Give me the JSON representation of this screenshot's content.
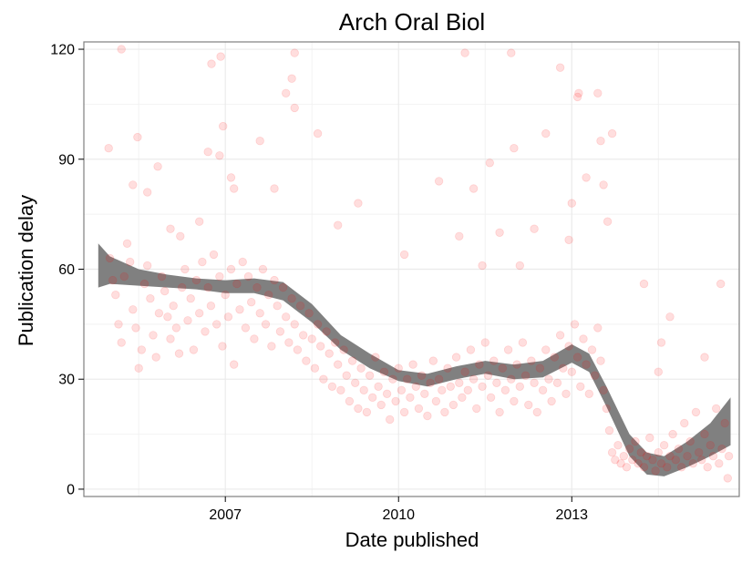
{
  "chart_data": {
    "type": "scatter",
    "title": "Arch Oral Biol",
    "xlabel": "Date published",
    "ylabel": "Publication delay",
    "xlim": [
      2004.55,
      2015.9
    ],
    "ylim": [
      -2,
      122
    ],
    "x_ticks": [
      2007,
      2010,
      2013
    ],
    "x_tick_labels": [
      "2007",
      "2010",
      "2013"
    ],
    "y_ticks": [
      0,
      30,
      60,
      90,
      120
    ],
    "y_tick_labels": [
      "0",
      "30",
      "60",
      "90",
      "120"
    ],
    "grid": true,
    "legend": "none",
    "point_color": "#ff0000",
    "point_opacity": 0.13,
    "smooth_color": "#808080",
    "points_note_free": true,
    "points": [
      [
        2004.98,
        93
      ],
      [
        2005.2,
        120
      ],
      [
        2005.4,
        83
      ],
      [
        2005.48,
        96
      ],
      [
        2005.65,
        81
      ],
      [
        2005.83,
        88
      ],
      [
        2006.05,
        71
      ],
      [
        2006.22,
        69
      ],
      [
        2006.55,
        73
      ],
      [
        2006.7,
        92
      ],
      [
        2006.76,
        116
      ],
      [
        2006.9,
        91
      ],
      [
        2006.92,
        118
      ],
      [
        2006.96,
        99
      ],
      [
        2007.1,
        85
      ],
      [
        2007.15,
        82
      ],
      [
        2007.6,
        95
      ],
      [
        2007.85,
        82
      ],
      [
        2008.05,
        108
      ],
      [
        2008.15,
        112
      ],
      [
        2008.2,
        104
      ],
      [
        2008.2,
        119
      ],
      [
        2008.6,
        97
      ],
      [
        2008.95,
        72
      ],
      [
        2009.3,
        78
      ],
      [
        2010.1,
        64
      ],
      [
        2010.7,
        84
      ],
      [
        2011.05,
        69
      ],
      [
        2011.15,
        119
      ],
      [
        2011.3,
        82
      ],
      [
        2011.45,
        61
      ],
      [
        2011.58,
        89
      ],
      [
        2011.75,
        70
      ],
      [
        2011.95,
        119
      ],
      [
        2012.0,
        93
      ],
      [
        2012.1,
        61
      ],
      [
        2012.35,
        71
      ],
      [
        2012.55,
        97
      ],
      [
        2012.8,
        115
      ],
      [
        2012.95,
        68
      ],
      [
        2013.0,
        78
      ],
      [
        2013.1,
        107
      ],
      [
        2013.12,
        108
      ],
      [
        2013.25,
        85
      ],
      [
        2013.45,
        108
      ],
      [
        2013.5,
        95
      ],
      [
        2013.55,
        83
      ],
      [
        2013.7,
        97
      ],
      [
        2013.62,
        73
      ],
      [
        2014.25,
        56
      ],
      [
        2014.5,
        32
      ],
      [
        2014.55,
        40
      ],
      [
        2014.7,
        47
      ],
      [
        2015.3,
        36
      ],
      [
        2015.58,
        56
      ],
      [
        2005.0,
        63
      ],
      [
        2005.05,
        57
      ],
      [
        2005.1,
        53
      ],
      [
        2005.15,
        45
      ],
      [
        2005.2,
        40
      ],
      [
        2005.25,
        58
      ],
      [
        2005.3,
        67
      ],
      [
        2005.35,
        62
      ],
      [
        2005.4,
        49
      ],
      [
        2005.45,
        44
      ],
      [
        2005.5,
        33
      ],
      [
        2005.55,
        38
      ],
      [
        2005.6,
        56
      ],
      [
        2005.65,
        61
      ],
      [
        2005.7,
        52
      ],
      [
        2005.75,
        42
      ],
      [
        2005.8,
        36
      ],
      [
        2005.85,
        48
      ],
      [
        2005.9,
        58
      ],
      [
        2005.95,
        54
      ],
      [
        2006.0,
        47
      ],
      [
        2006.05,
        41
      ],
      [
        2006.1,
        50
      ],
      [
        2006.15,
        44
      ],
      [
        2006.2,
        37
      ],
      [
        2006.25,
        55
      ],
      [
        2006.3,
        60
      ],
      [
        2006.35,
        46
      ],
      [
        2006.4,
        52
      ],
      [
        2006.45,
        38
      ],
      [
        2006.5,
        57
      ],
      [
        2006.55,
        48
      ],
      [
        2006.6,
        62
      ],
      [
        2006.65,
        43
      ],
      [
        2006.7,
        55
      ],
      [
        2006.75,
        50
      ],
      [
        2006.8,
        64
      ],
      [
        2006.85,
        45
      ],
      [
        2006.9,
        58
      ],
      [
        2006.95,
        39
      ],
      [
        2007.0,
        53
      ],
      [
        2007.05,
        47
      ],
      [
        2007.1,
        60
      ],
      [
        2007.15,
        34
      ],
      [
        2007.2,
        56
      ],
      [
        2007.25,
        49
      ],
      [
        2007.3,
        62
      ],
      [
        2007.35,
        44
      ],
      [
        2007.4,
        58
      ],
      [
        2007.45,
        51
      ],
      [
        2007.5,
        41
      ],
      [
        2007.55,
        55
      ],
      [
        2007.6,
        48
      ],
      [
        2007.65,
        60
      ],
      [
        2007.7,
        45
      ],
      [
        2007.75,
        53
      ],
      [
        2007.8,
        39
      ],
      [
        2007.85,
        57
      ],
      [
        2007.9,
        50
      ],
      [
        2007.95,
        43
      ],
      [
        2008.0,
        55
      ],
      [
        2008.05,
        47
      ],
      [
        2008.1,
        40
      ],
      [
        2008.15,
        52
      ],
      [
        2008.2,
        45
      ],
      [
        2008.25,
        38
      ],
      [
        2008.3,
        50
      ],
      [
        2008.35,
        42
      ],
      [
        2008.4,
        35
      ],
      [
        2008.45,
        48
      ],
      [
        2008.5,
        41
      ],
      [
        2008.55,
        33
      ],
      [
        2008.6,
        45
      ],
      [
        2008.65,
        39
      ],
      [
        2008.7,
        30
      ],
      [
        2008.75,
        43
      ],
      [
        2008.8,
        37
      ],
      [
        2008.85,
        28
      ],
      [
        2008.9,
        40
      ],
      [
        2008.95,
        34
      ],
      [
        2009.0,
        27
      ],
      [
        2009.05,
        38
      ],
      [
        2009.1,
        31
      ],
      [
        2009.15,
        24
      ],
      [
        2009.2,
        35
      ],
      [
        2009.25,
        29
      ],
      [
        2009.3,
        22
      ],
      [
        2009.35,
        33
      ],
      [
        2009.4,
        27
      ],
      [
        2009.45,
        21
      ],
      [
        2009.5,
        31
      ],
      [
        2009.55,
        25
      ],
      [
        2009.6,
        36
      ],
      [
        2009.65,
        28
      ],
      [
        2009.7,
        23
      ],
      [
        2009.75,
        32
      ],
      [
        2009.8,
        26
      ],
      [
        2009.85,
        19
      ],
      [
        2009.9,
        30
      ],
      [
        2009.95,
        24
      ],
      [
        2010.0,
        33
      ],
      [
        2010.05,
        27
      ],
      [
        2010.1,
        21
      ],
      [
        2010.15,
        30
      ],
      [
        2010.2,
        25
      ],
      [
        2010.25,
        34
      ],
      [
        2010.3,
        28
      ],
      [
        2010.35,
        22
      ],
      [
        2010.4,
        31
      ],
      [
        2010.45,
        26
      ],
      [
        2010.5,
        20
      ],
      [
        2010.55,
        29
      ],
      [
        2010.6,
        35
      ],
      [
        2010.65,
        24
      ],
      [
        2010.7,
        30
      ],
      [
        2010.75,
        27
      ],
      [
        2010.8,
        21
      ],
      [
        2010.85,
        33
      ],
      [
        2010.9,
        28
      ],
      [
        2010.95,
        23
      ],
      [
        2011.0,
        36
      ],
      [
        2011.05,
        29
      ],
      [
        2011.1,
        25
      ],
      [
        2011.15,
        32
      ],
      [
        2011.2,
        27
      ],
      [
        2011.25,
        38
      ],
      [
        2011.3,
        30
      ],
      [
        2011.35,
        22
      ],
      [
        2011.4,
        34
      ],
      [
        2011.45,
        28
      ],
      [
        2011.5,
        40
      ],
      [
        2011.55,
        31
      ],
      [
        2011.6,
        25
      ],
      [
        2011.65,
        35
      ],
      [
        2011.7,
        29
      ],
      [
        2011.75,
        21
      ],
      [
        2011.8,
        33
      ],
      [
        2011.85,
        27
      ],
      [
        2011.9,
        38
      ],
      [
        2011.95,
        30
      ],
      [
        2012.0,
        24
      ],
      [
        2012.05,
        34
      ],
      [
        2012.1,
        28
      ],
      [
        2012.15,
        40
      ],
      [
        2012.2,
        31
      ],
      [
        2012.25,
        23
      ],
      [
        2012.3,
        35
      ],
      [
        2012.35,
        29
      ],
      [
        2012.4,
        21
      ],
      [
        2012.45,
        33
      ],
      [
        2012.5,
        27
      ],
      [
        2012.55,
        38
      ],
      [
        2012.6,
        30
      ],
      [
        2012.65,
        24
      ],
      [
        2012.7,
        36
      ],
      [
        2012.75,
        29
      ],
      [
        2012.8,
        42
      ],
      [
        2012.85,
        33
      ],
      [
        2012.9,
        26
      ],
      [
        2012.95,
        39
      ],
      [
        2013.0,
        32
      ],
      [
        2013.05,
        45
      ],
      [
        2013.1,
        36
      ],
      [
        2013.15,
        28
      ],
      [
        2013.2,
        41
      ],
      [
        2013.25,
        34
      ],
      [
        2013.3,
        26
      ],
      [
        2013.35,
        38
      ],
      [
        2013.4,
        31
      ],
      [
        2013.45,
        44
      ],
      [
        2013.5,
        35
      ],
      [
        2013.55,
        27
      ],
      [
        2013.6,
        22
      ],
      [
        2013.65,
        16
      ],
      [
        2013.7,
        10
      ],
      [
        2013.75,
        8
      ],
      [
        2013.8,
        12
      ],
      [
        2013.85,
        7
      ],
      [
        2013.9,
        9
      ],
      [
        2013.95,
        6
      ],
      [
        2014.0,
        11
      ],
      [
        2014.05,
        8
      ],
      [
        2014.1,
        13
      ],
      [
        2014.15,
        7
      ],
      [
        2014.2,
        10
      ],
      [
        2014.25,
        6
      ],
      [
        2014.3,
        9
      ],
      [
        2014.35,
        14
      ],
      [
        2014.4,
        8
      ],
      [
        2014.45,
        5
      ],
      [
        2014.5,
        10
      ],
      [
        2014.55,
        7
      ],
      [
        2014.6,
        12
      ],
      [
        2014.65,
        6
      ],
      [
        2014.7,
        9
      ],
      [
        2014.75,
        15
      ],
      [
        2014.8,
        8
      ],
      [
        2014.85,
        11
      ],
      [
        2014.9,
        6
      ],
      [
        2014.95,
        18
      ],
      [
        2015.0,
        9
      ],
      [
        2015.05,
        13
      ],
      [
        2015.1,
        7
      ],
      [
        2015.15,
        21
      ],
      [
        2015.2,
        10
      ],
      [
        2015.25,
        8
      ],
      [
        2015.3,
        15
      ],
      [
        2015.35,
        6
      ],
      [
        2015.4,
        12
      ],
      [
        2015.45,
        9
      ],
      [
        2015.5,
        22
      ],
      [
        2015.55,
        7
      ],
      [
        2015.6,
        11
      ],
      [
        2015.65,
        18
      ],
      [
        2015.7,
        3
      ],
      [
        2015.72,
        9
      ]
    ],
    "smooth": [
      {
        "x": 2004.8,
        "lo": 55,
        "hi": 67
      },
      {
        "x": 2005.0,
        "lo": 56,
        "hi": 63.5
      },
      {
        "x": 2005.5,
        "lo": 55.5,
        "hi": 60
      },
      {
        "x": 2006.0,
        "lo": 55,
        "hi": 58.5
      },
      {
        "x": 2006.5,
        "lo": 54.5,
        "hi": 57.5
      },
      {
        "x": 2007.0,
        "lo": 53.5,
        "hi": 57
      },
      {
        "x": 2007.5,
        "lo": 53.5,
        "hi": 57.5
      },
      {
        "x": 2008.0,
        "lo": 51.5,
        "hi": 56.5
      },
      {
        "x": 2008.5,
        "lo": 45.5,
        "hi": 50.5
      },
      {
        "x": 2009.0,
        "lo": 38,
        "hi": 42
      },
      {
        "x": 2009.5,
        "lo": 33,
        "hi": 37
      },
      {
        "x": 2010.0,
        "lo": 29.5,
        "hi": 32.5
      },
      {
        "x": 2010.5,
        "lo": 28,
        "hi": 31.5
      },
      {
        "x": 2011.0,
        "lo": 30,
        "hi": 33.5
      },
      {
        "x": 2011.5,
        "lo": 31.5,
        "hi": 35
      },
      {
        "x": 2012.0,
        "lo": 30,
        "hi": 34
      },
      {
        "x": 2012.5,
        "lo": 30.5,
        "hi": 35
      },
      {
        "x": 2013.0,
        "lo": 34.5,
        "hi": 39.5
      },
      {
        "x": 2013.3,
        "lo": 32,
        "hi": 37
      },
      {
        "x": 2013.6,
        "lo": 22.5,
        "hi": 28
      },
      {
        "x": 2014.0,
        "lo": 9,
        "hi": 15
      },
      {
        "x": 2014.3,
        "lo": 4,
        "hi": 10
      },
      {
        "x": 2014.6,
        "lo": 3.5,
        "hi": 9
      },
      {
        "x": 2015.0,
        "lo": 6,
        "hi": 13
      },
      {
        "x": 2015.4,
        "lo": 9,
        "hi": 18
      },
      {
        "x": 2015.75,
        "lo": 12,
        "hi": 25
      }
    ]
  }
}
